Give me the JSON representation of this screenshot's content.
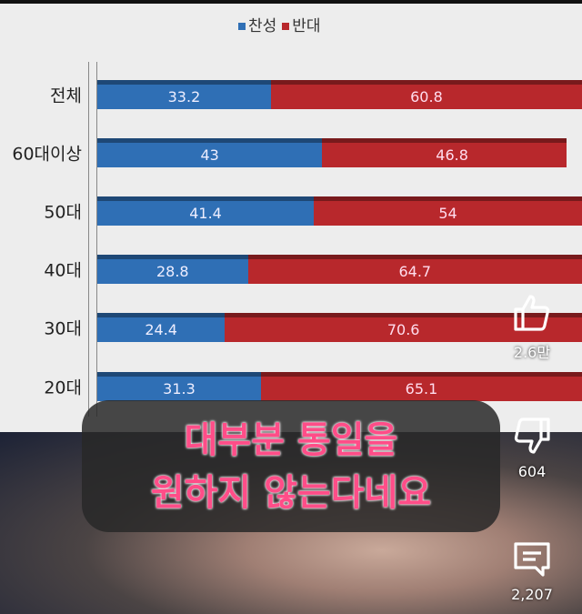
{
  "chart_data": {
    "type": "bar",
    "stacked": true,
    "orientation": "horizontal",
    "legend": [
      "찬성",
      "반대"
    ],
    "legend_placement": "top",
    "categories": [
      "전체",
      "60대이상",
      "50대",
      "40대",
      "30대",
      "20대"
    ],
    "series": [
      {
        "name": "찬성",
        "color": "#2f6fb5",
        "values": [
          33.2,
          43,
          41.4,
          28.8,
          24.4,
          31.3
        ]
      },
      {
        "name": "반대",
        "color": "#b8282c",
        "values": [
          60.8,
          46.8,
          54,
          64.7,
          70.6,
          65.1
        ]
      }
    ]
  },
  "caption": {
    "line1": "대부분 통일을",
    "line2": "원하지 않는다네요"
  },
  "actions": {
    "like": {
      "icon": "thumbs-up-icon",
      "count": "2.6만"
    },
    "dislike": {
      "icon": "thumbs-down-icon",
      "count": "604"
    },
    "comments": {
      "icon": "comment-icon",
      "count": "2,207"
    }
  }
}
